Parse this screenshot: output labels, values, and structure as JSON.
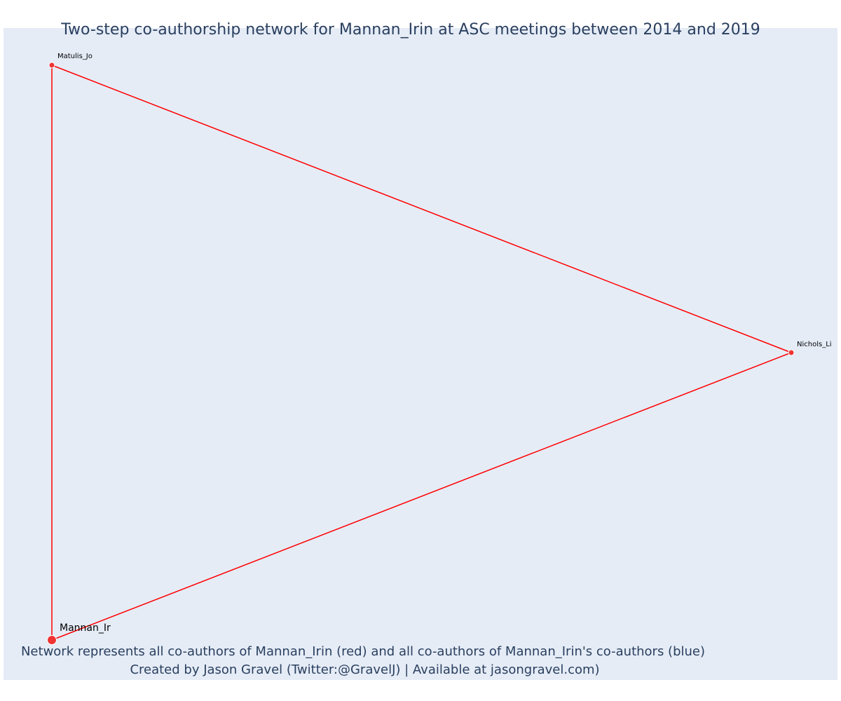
{
  "title": "Two-step co-authorship network for Mannan_Irin at ASC meetings between 2014 and 2019",
  "caption": {
    "line1": "Network represents all co-authors of Mannan_Irin (red) and all co-authors of Mannan_Irin's co-authors (blue)",
    "line2": "Created by Jason Gravel (Twitter:@GravelJ) | Available at jasongravel.com)"
  },
  "colors": {
    "plot_background": "#e5ecf6",
    "edge": "#ff0000",
    "node": "#ef3434",
    "node_outline": "#ffffff",
    "text": "#2a3f5f"
  },
  "network": {
    "nodes": [
      {
        "id": "mannan",
        "label": "Mannan_Ir",
        "role": "focal"
      },
      {
        "id": "matulis",
        "label": "Matulis_Jo",
        "role": "co-author"
      },
      {
        "id": "nichols",
        "label": "Nichols_Li",
        "role": "co-author"
      }
    ],
    "edges": [
      {
        "source": "mannan",
        "target": "matulis"
      },
      {
        "source": "matulis",
        "target": "nichols"
      },
      {
        "source": "nichols",
        "target": "mannan"
      }
    ]
  }
}
